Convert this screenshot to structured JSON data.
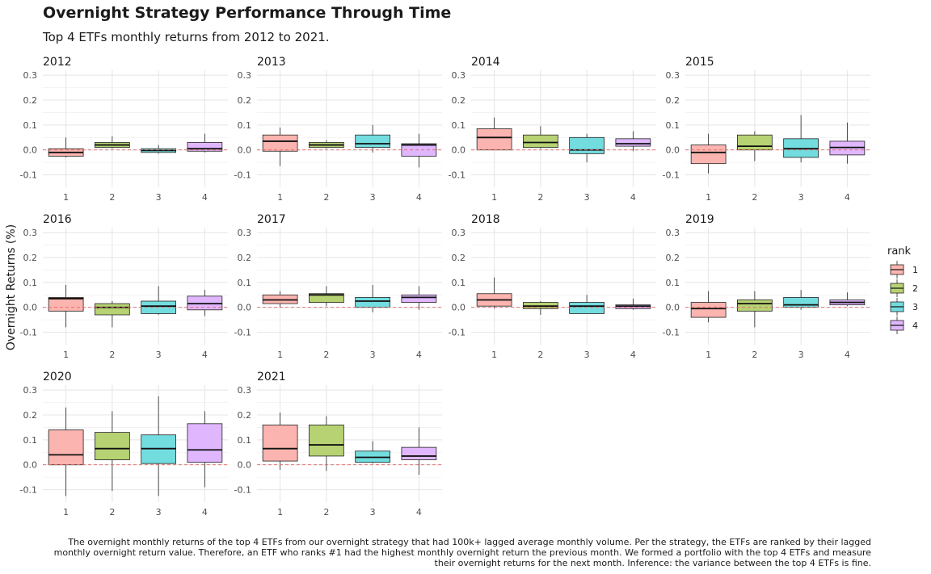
{
  "title": "Overnight Strategy Performance Through Time",
  "subtitle": "Top 4 ETFs monthly returns from 2012 to 2021.",
  "caption": "The overnight monthly returns of the top 4 ETFs from our overnight strategy that had 100k+ lagged average monthly volume. Per the strategy, the ETFs are ranked by their lagged monthly overnight return value. Therefore, an ETF who ranks #1 had the highest monthly overnight return the previous month. We formed a portfolio with the top 4 ETFs and measure their overnight returns for the next month. Inference: the variance between the top 4 ETFs is fine.",
  "chart_data": {
    "type": "boxplot",
    "ylabel": "Overnight Returns (%)",
    "xlabel": "",
    "ylim": [
      -0.15,
      0.32
    ],
    "yticks": [
      -0.1,
      0.0,
      0.1,
      0.2,
      0.3
    ],
    "categories": [
      "1",
      "2",
      "3",
      "4"
    ],
    "reference_line": 0,
    "grid": true,
    "legend": {
      "title": "rank",
      "placement": "right",
      "entries": [
        "1",
        "2",
        "3",
        "4"
      ]
    },
    "colors": [
      "#f8766d",
      "#7cae00",
      "#00bfc4",
      "#c77cff"
    ],
    "facets": [
      {
        "year": "2012",
        "boxes": [
          {
            "rank": "1",
            "min": -0.03,
            "q1": -0.025,
            "median": -0.01,
            "q3": 0.005,
            "max": 0.05
          },
          {
            "rank": "2",
            "min": 0.005,
            "q1": 0.01,
            "median": 0.02,
            "q3": 0.03,
            "max": 0.055
          },
          {
            "rank": "3",
            "min": -0.015,
            "q1": -0.01,
            "median": -0.002,
            "q3": 0.005,
            "max": 0.02
          },
          {
            "rank": "4",
            "min": -0.01,
            "q1": -0.005,
            "median": 0.005,
            "q3": 0.03,
            "max": 0.065
          }
        ]
      },
      {
        "year": "2013",
        "boxes": [
          {
            "rank": "1",
            "min": -0.065,
            "q1": -0.005,
            "median": 0.035,
            "q3": 0.06,
            "max": 0.09
          },
          {
            "rank": "2",
            "min": 0.005,
            "q1": 0.01,
            "median": 0.02,
            "q3": 0.03,
            "max": 0.04
          },
          {
            "rank": "3",
            "min": -0.01,
            "q1": 0.01,
            "median": 0.025,
            "q3": 0.06,
            "max": 0.1
          },
          {
            "rank": "4",
            "min": -0.07,
            "q1": -0.025,
            "median": 0.02,
            "q3": 0.025,
            "max": 0.065
          }
        ]
      },
      {
        "year": "2014",
        "boxes": [
          {
            "rank": "1",
            "min": 0.0,
            "q1": 0.0,
            "median": 0.05,
            "q3": 0.085,
            "max": 0.13
          },
          {
            "rank": "2",
            "min": 0.005,
            "q1": 0.01,
            "median": 0.03,
            "q3": 0.06,
            "max": 0.095
          },
          {
            "rank": "3",
            "min": -0.05,
            "q1": -0.015,
            "median": 0.0,
            "q3": 0.05,
            "max": 0.065
          },
          {
            "rank": "4",
            "min": -0.005,
            "q1": 0.015,
            "median": 0.025,
            "q3": 0.045,
            "max": 0.075
          }
        ]
      },
      {
        "year": "2015",
        "boxes": [
          {
            "rank": "1",
            "min": -0.095,
            "q1": -0.055,
            "median": -0.01,
            "q3": 0.02,
            "max": 0.065
          },
          {
            "rank": "2",
            "min": -0.045,
            "q1": 0.0,
            "median": 0.015,
            "q3": 0.06,
            "max": 0.075
          },
          {
            "rank": "3",
            "min": -0.05,
            "q1": -0.03,
            "median": 0.005,
            "q3": 0.045,
            "max": 0.14
          },
          {
            "rank": "4",
            "min": -0.055,
            "q1": -0.02,
            "median": 0.01,
            "q3": 0.035,
            "max": 0.11
          }
        ]
      },
      {
        "year": "2016",
        "boxes": [
          {
            "rank": "1",
            "min": -0.08,
            "q1": -0.015,
            "median": 0.035,
            "q3": 0.04,
            "max": 0.09
          },
          {
            "rank": "2",
            "min": -0.08,
            "q1": -0.03,
            "median": 0.0,
            "q3": 0.015,
            "max": 0.025
          },
          {
            "rank": "3",
            "min": -0.03,
            "q1": -0.025,
            "median": 0.005,
            "q3": 0.025,
            "max": 0.085
          },
          {
            "rank": "4",
            "min": -0.035,
            "q1": -0.01,
            "median": 0.015,
            "q3": 0.045,
            "max": 0.07
          }
        ]
      },
      {
        "year": "2017",
        "boxes": [
          {
            "rank": "1",
            "min": 0.0,
            "q1": 0.015,
            "median": 0.03,
            "q3": 0.05,
            "max": 0.065
          },
          {
            "rank": "2",
            "min": 0.005,
            "q1": 0.02,
            "median": 0.05,
            "q3": 0.055,
            "max": 0.085
          },
          {
            "rank": "3",
            "min": -0.02,
            "q1": 0.0,
            "median": 0.025,
            "q3": 0.04,
            "max": 0.09
          },
          {
            "rank": "4",
            "min": -0.01,
            "q1": 0.02,
            "median": 0.04,
            "q3": 0.05,
            "max": 0.085
          }
        ]
      },
      {
        "year": "2018",
        "boxes": [
          {
            "rank": "1",
            "min": -0.005,
            "q1": 0.005,
            "median": 0.03,
            "q3": 0.055,
            "max": 0.12
          },
          {
            "rank": "2",
            "min": -0.03,
            "q1": -0.005,
            "median": 0.005,
            "q3": 0.02,
            "max": 0.025
          },
          {
            "rank": "3",
            "min": -0.025,
            "q1": -0.025,
            "median": 0.005,
            "q3": 0.02,
            "max": 0.05
          },
          {
            "rank": "4",
            "min": -0.01,
            "q1": -0.005,
            "median": 0.005,
            "q3": 0.01,
            "max": 0.035
          }
        ]
      },
      {
        "year": "2019",
        "boxes": [
          {
            "rank": "1",
            "min": -0.06,
            "q1": -0.04,
            "median": -0.005,
            "q3": 0.02,
            "max": 0.065
          },
          {
            "rank": "2",
            "min": -0.08,
            "q1": -0.015,
            "median": 0.015,
            "q3": 0.03,
            "max": 0.065
          },
          {
            "rank": "3",
            "min": -0.01,
            "q1": 0.0,
            "median": 0.01,
            "q3": 0.04,
            "max": 0.07
          },
          {
            "rank": "4",
            "min": 0.005,
            "q1": 0.01,
            "median": 0.02,
            "q3": 0.03,
            "max": 0.06
          }
        ]
      },
      {
        "year": "2020",
        "boxes": [
          {
            "rank": "1",
            "min": -0.125,
            "q1": 0.0,
            "median": 0.04,
            "q3": 0.14,
            "max": 0.23
          },
          {
            "rank": "2",
            "min": -0.105,
            "q1": 0.02,
            "median": 0.065,
            "q3": 0.13,
            "max": 0.215
          },
          {
            "rank": "3",
            "min": -0.125,
            "q1": 0.005,
            "median": 0.065,
            "q3": 0.12,
            "max": 0.275
          },
          {
            "rank": "4",
            "min": -0.09,
            "q1": 0.01,
            "median": 0.06,
            "q3": 0.165,
            "max": 0.215
          }
        ]
      },
      {
        "year": "2021",
        "boxes": [
          {
            "rank": "1",
            "min": -0.02,
            "q1": 0.015,
            "median": 0.065,
            "q3": 0.16,
            "max": 0.21
          },
          {
            "rank": "2",
            "min": -0.025,
            "q1": 0.035,
            "median": 0.08,
            "q3": 0.16,
            "max": 0.195
          },
          {
            "rank": "3",
            "min": 0.005,
            "q1": 0.01,
            "median": 0.03,
            "q3": 0.055,
            "max": 0.095
          },
          {
            "rank": "4",
            "min": -0.04,
            "q1": 0.02,
            "median": 0.035,
            "q3": 0.07,
            "max": 0.15
          }
        ]
      }
    ]
  }
}
